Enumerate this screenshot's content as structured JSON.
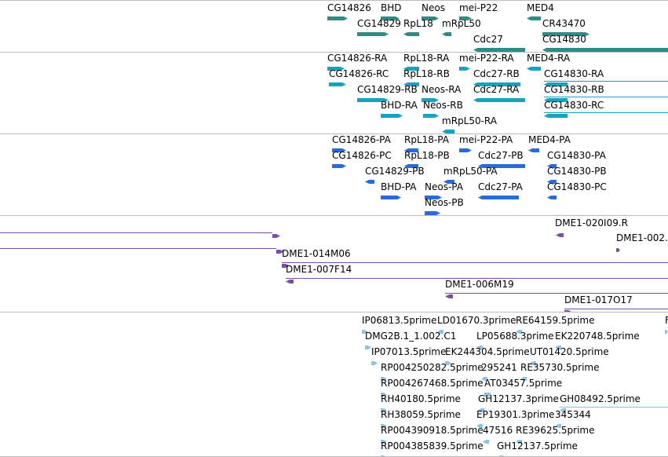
{
  "tracks": [
    {
      "id": "genes",
      "color": "#2e8b86",
      "features": [
        {
          "label": "CG14826"
        },
        {
          "label": "BHD"
        },
        {
          "label": "Neos"
        },
        {
          "label": "mei-P22"
        },
        {
          "label": "MED4"
        },
        {
          "label": "CG14829"
        },
        {
          "label": "RpL18"
        },
        {
          "label": "mRpL50"
        },
        {
          "label": "CR43470"
        },
        {
          "label": "Cdc27"
        },
        {
          "label": "CG14830"
        }
      ]
    },
    {
      "id": "transcripts",
      "color": "#17a3bd",
      "features": [
        {
          "label": "CG14826-RA"
        },
        {
          "label": "RpL18-RA"
        },
        {
          "label": "mei-P22-RA"
        },
        {
          "label": "MED4-RA"
        },
        {
          "label": "CG14826-RC"
        },
        {
          "label": "RpL18-RB"
        },
        {
          "label": "Cdc27-RB"
        },
        {
          "label": "CG14830-RA"
        },
        {
          "label": "CG14829-RB"
        },
        {
          "label": "Neos-RA"
        },
        {
          "label": "Cdc27-RA"
        },
        {
          "label": "CG14830-RB"
        },
        {
          "label": "BHD-RA"
        },
        {
          "label": "Neos-RB"
        },
        {
          "label": "CG14830-RC"
        },
        {
          "label": "mRpL50-RA"
        }
      ]
    },
    {
      "id": "proteins",
      "color": "#2a6bd6",
      "features": [
        {
          "label": "CG14826-PA"
        },
        {
          "label": "RpL18-PA"
        },
        {
          "label": "mei-P22-PA"
        },
        {
          "label": "MED4-PA"
        },
        {
          "label": "CG14826-PC"
        },
        {
          "label": "RpL18-PB"
        },
        {
          "label": "Cdc27-PB"
        },
        {
          "label": "CG14830-PA"
        },
        {
          "label": "CG14829-PB"
        },
        {
          "label": "mRpL50-PA"
        },
        {
          "label": "CG14830-PB"
        },
        {
          "label": "BHD-PA"
        },
        {
          "label": "Neos-PA"
        },
        {
          "label": "Cdc27-PA"
        },
        {
          "label": "CG14830-PC"
        },
        {
          "label": "Neos-PB"
        }
      ]
    },
    {
      "id": "clones",
      "color": "#7b4fa8",
      "features": [
        {
          "label": ""
        },
        {
          "label": ""
        },
        {
          "label": "DME1-020I09.R"
        },
        {
          "label": "DME1-002."
        },
        {
          "label": "DME1-014M06"
        },
        {
          "label": "DME1-007F14"
        },
        {
          "label": "DME1-006M19"
        },
        {
          "label": "DME1-017O17"
        }
      ]
    },
    {
      "id": "ests",
      "color": "#8fc3e6",
      "features": [
        {
          "label": "IP06813.5prime"
        },
        {
          "label": "LD01670.3prime"
        },
        {
          "label": "RE64159.5prime"
        },
        {
          "label": "F"
        },
        {
          "label": "DMG2B.1_1.002.C1"
        },
        {
          "label": "LP05688.3prime"
        },
        {
          "label": "EK220748.5prime"
        },
        {
          "label": "IP07013.5prime"
        },
        {
          "label": "EK244304.5prime"
        },
        {
          "label": "UT01420.5prime"
        },
        {
          "label": "RP004250282.5prime"
        },
        {
          "label": "295241"
        },
        {
          "label": "RE35730.5prime"
        },
        {
          "label": "RP004267468.5prime"
        },
        {
          "label": "AT03457.5prime"
        },
        {
          "label": "RH40180.5prime"
        },
        {
          "label": "GH12137.3prime"
        },
        {
          "label": "GH08492.5prime"
        },
        {
          "label": "RH38059.5prime"
        },
        {
          "label": "EP19301.3prime"
        },
        {
          "label": "345344"
        },
        {
          "label": "RP004390918.5prime"
        },
        {
          "label": "47516"
        },
        {
          "label": "RE39625.5prime"
        },
        {
          "label": "RP004385839.5prime"
        },
        {
          "label": "GH12137.5prime"
        }
      ]
    }
  ]
}
